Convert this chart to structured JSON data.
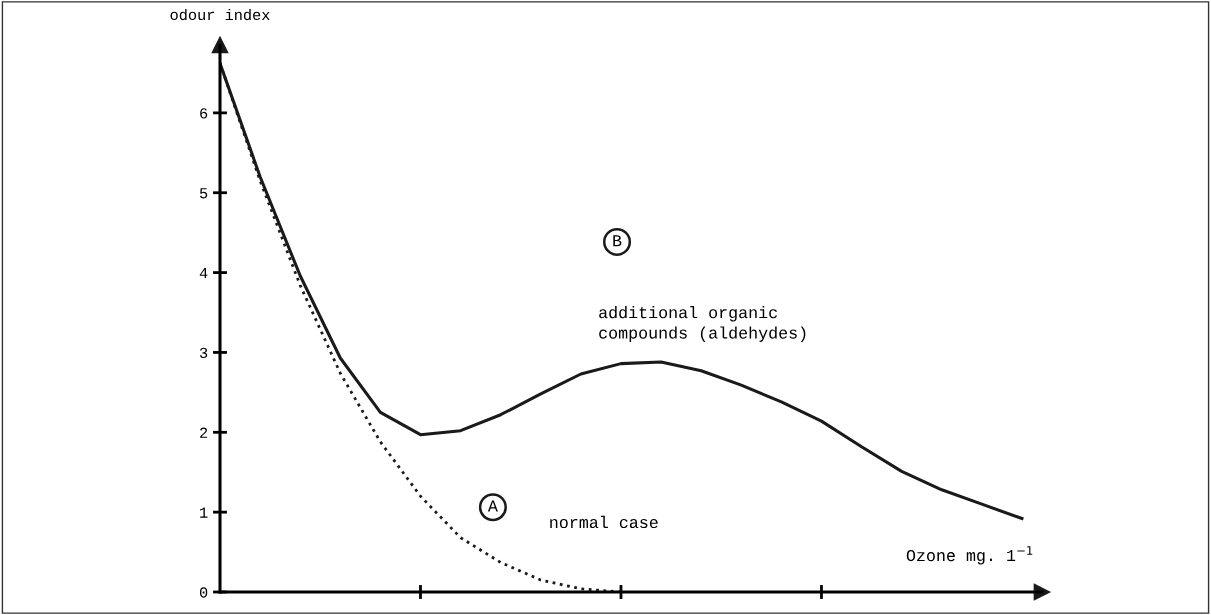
{
  "chart_data": {
    "type": "line",
    "ylabel": "odour index",
    "xlabel": "Ozone mg. 1$^{−1}$",
    "categories": [
      null,
      null,
      null,
      null,
      null,
      null,
      null,
      null,
      null,
      null,
      null,
      null,
      null,
      null,
      null,
      null,
      null,
      null,
      null,
      null,
      null
    ],
    "ylim": [
      0,
      6.85
    ],
    "yticks": [
      0,
      1,
      2,
      3,
      4,
      5,
      6
    ],
    "series": [
      {
        "values": [
          6.62,
          5.2,
          3.96,
          2.93,
          2.25,
          1.97,
          2.02,
          2.22,
          2.48,
          2.73,
          2.86,
          2.88,
          2.77,
          2.59,
          2.38,
          2.14,
          1.82,
          1.51,
          1.28,
          1.1,
          0.92
        ],
        "color": "#1a1a1a",
        "line_style": "solid"
      },
      {
        "values": [
          6.62,
          5.15,
          3.84,
          2.74,
          1.88,
          1.2,
          0.68,
          0.37,
          0.15,
          0.04,
          0,
          null,
          null,
          null,
          null,
          null,
          null,
          null,
          null,
          null,
          null
        ],
        "color": "#1a1a1a",
        "line_style": "dotted"
      }
    ],
    "annotations": [
      "A",
      "normal case",
      "B",
      "additional organic\ncompounds (aldehydes)"
    ]
  }
}
